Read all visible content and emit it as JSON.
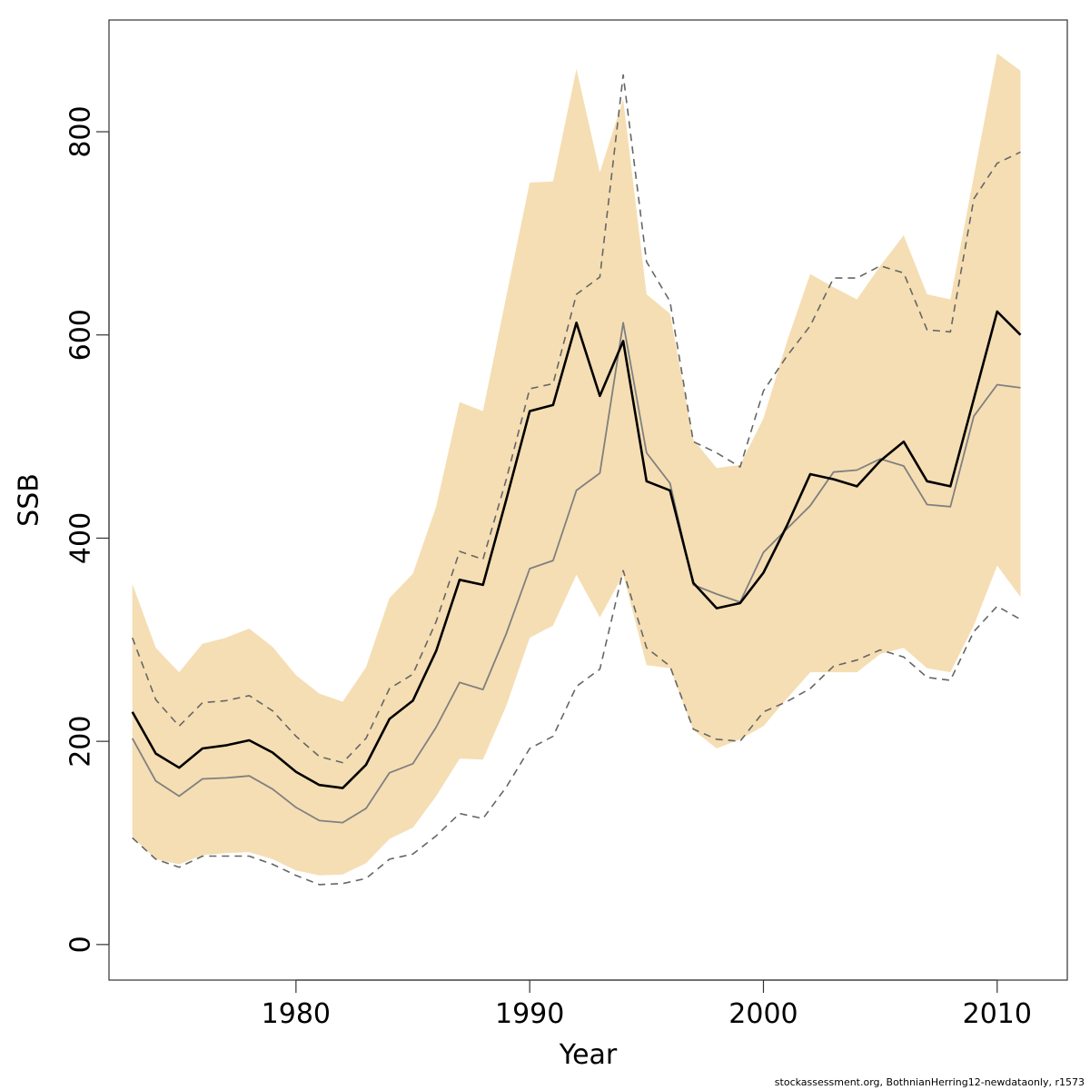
{
  "chart_data": {
    "type": "line",
    "xlabel": "Year",
    "ylabel": "SSB",
    "xlim": [
      1972,
      2013
    ],
    "ylim": [
      -35,
      910
    ],
    "x_ticks": [
      1980,
      1990,
      2000,
      2010
    ],
    "y_ticks": [
      0,
      200,
      400,
      600,
      800
    ],
    "grid": false,
    "legend": "none",
    "colors": {
      "band": "#f5deb3",
      "main": "#000000",
      "secondary": "#808080",
      "dashed": "#666666"
    },
    "x": [
      1973,
      1974,
      1975,
      1976,
      1977,
      1978,
      1979,
      1980,
      1981,
      1982,
      1983,
      1984,
      1985,
      1986,
      1987,
      1988,
      1989,
      1990,
      1991,
      1992,
      1993,
      1994,
      1995,
      1996,
      1997,
      1998,
      1999,
      2000,
      2001,
      2002,
      2003,
      2004,
      2005,
      2006,
      2007,
      2008,
      2009,
      2010,
      2011
    ],
    "band": {
      "upper": [
        355,
        292,
        268,
        296,
        302,
        311,
        293,
        265,
        247,
        239,
        273,
        341,
        365,
        431,
        534,
        525,
        638,
        750,
        751,
        862,
        760,
        832,
        640,
        621,
        497,
        469,
        472,
        518,
        593,
        660,
        647,
        635,
        668,
        698,
        640,
        635,
        756,
        877,
        860
      ],
      "lower": [
        106,
        84,
        79,
        88,
        90,
        91,
        84,
        73,
        68,
        69,
        80,
        104,
        115,
        146,
        183,
        182,
        235,
        302,
        314,
        364,
        322,
        364,
        275,
        272,
        211,
        193,
        202,
        215,
        242,
        268,
        268,
        268,
        286,
        292,
        272,
        268,
        314,
        373,
        342
      ]
    },
    "series": [
      {
        "style": "solid-black",
        "values": [
          229,
          188,
          174,
          193,
          196,
          201,
          189,
          170,
          157,
          154,
          177,
          222,
          240,
          289,
          359,
          354,
          438,
          525,
          531,
          612,
          540,
          594,
          456,
          447,
          356,
          331,
          336,
          366,
          412,
          463,
          458,
          451,
          476,
          495,
          456,
          451,
          537,
          623,
          600
        ]
      },
      {
        "style": "solid-gray",
        "values": [
          203,
          161,
          146,
          163,
          164,
          166,
          153,
          135,
          122,
          120,
          134,
          169,
          178,
          214,
          258,
          251,
          306,
          370,
          378,
          447,
          464,
          612,
          484,
          454,
          354,
          345,
          337,
          386,
          409,
          432,
          465,
          467,
          478,
          471,
          433,
          431,
          520,
          551,
          548
        ]
      },
      {
        "style": "dashed-upper",
        "values": [
          302,
          241,
          215,
          238,
          240,
          245,
          230,
          205,
          185,
          179,
          203,
          252,
          266,
          318,
          387,
          379,
          458,
          547,
          552,
          640,
          657,
          856,
          672,
          633,
          495,
          484,
          470,
          545,
          579,
          609,
          656,
          656,
          668,
          661,
          605,
          603,
          734,
          769,
          780
        ]
      },
      {
        "style": "dashed-lower",
        "values": [
          105,
          84,
          76,
          87,
          87,
          87,
          79,
          68,
          59,
          60,
          65,
          84,
          89,
          107,
          129,
          124,
          155,
          193,
          205,
          254,
          271,
          368,
          292,
          274,
          212,
          202,
          200,
          229,
          239,
          252,
          274,
          280,
          290,
          283,
          263,
          260,
          308,
          333,
          320
        ]
      }
    ]
  },
  "footer": {
    "credit": "stockassessment.org, BothnianHerring12-newdataonly, r1573"
  }
}
